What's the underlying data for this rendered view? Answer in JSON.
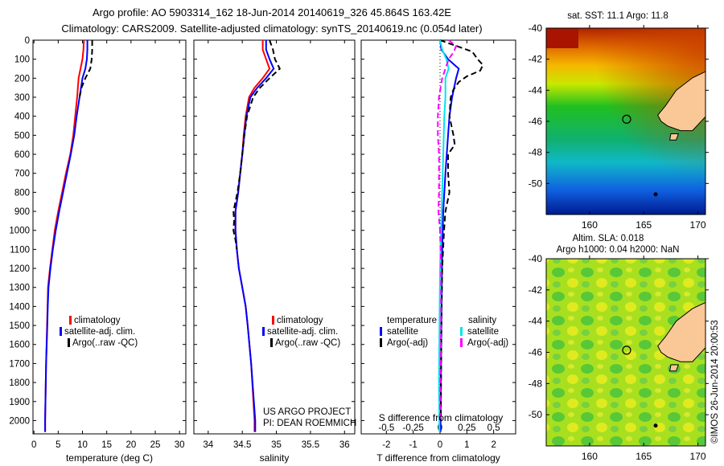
{
  "title": {
    "line1": "Argo profile: AO 5903314_162 18-Jun-2014 20140619_326 45.864S 163.42E",
    "line2": "Climatology: CARS2009. Satellite-adjusted climatology: synTS_20140619.nc (0.054d later)"
  },
  "colors": {
    "climatology": "#ff0000",
    "satellite": "#0000ff",
    "argo": "#000000",
    "s_satellite": "#00e5ee",
    "s_argo": "#ff00ff"
  },
  "credit": "©IMOS 26-Jun-2014 20:00:53",
  "project": {
    "line1": "US ARGO PROJECT",
    "line2": "PI: DEAN ROEMMICH"
  },
  "chart_data": [
    {
      "type": "line",
      "id": "temperature",
      "xlabel": "temperature (deg C)",
      "ylabel": "depth",
      "xlim": [
        -0.2,
        31.3
      ],
      "ylim": [
        2070,
        0
      ],
      "xticks": [
        0,
        5,
        10,
        15,
        20,
        25,
        30
      ],
      "yticks": [
        0,
        100,
        200,
        300,
        400,
        500,
        600,
        700,
        800,
        900,
        1000,
        1100,
        1200,
        1300,
        1400,
        1500,
        1600,
        1700,
        1800,
        1900,
        2000
      ],
      "legend": [
        "climatology",
        "satellite-adj. clim.",
        "Argo(..raw -QC)"
      ],
      "series": [
        {
          "name": "climatology",
          "color": "#ff0000",
          "dash": false,
          "depth": [
            0,
            50,
            100,
            150,
            200,
            300,
            400,
            500,
            600,
            700,
            800,
            900,
            1000,
            1100,
            1200,
            1300,
            1400,
            1500,
            1700,
            2000,
            2060
          ],
          "values": [
            10.3,
            10.2,
            10.0,
            9.6,
            9.2,
            8.9,
            8.5,
            8.1,
            7.5,
            6.6,
            5.8,
            5.0,
            4.3,
            3.8,
            3.3,
            2.9,
            2.8,
            2.7,
            2.5,
            2.3,
            2.3
          ]
        },
        {
          "name": "satellite-adj. clim.",
          "color": "#0000ff",
          "dash": false,
          "depth": [
            0,
            50,
            100,
            150,
            200,
            300,
            400,
            500,
            600,
            700,
            800,
            900,
            1000,
            1100,
            1200,
            1300,
            1400,
            1500,
            1700,
            2000,
            2060
          ],
          "values": [
            11.0,
            11.0,
            10.9,
            10.6,
            10.0,
            9.4,
            8.8,
            8.3,
            7.6,
            6.8,
            6.0,
            5.2,
            4.5,
            3.9,
            3.4,
            3.0,
            2.85,
            2.75,
            2.5,
            2.3,
            2.3
          ]
        },
        {
          "name": "Argo(..raw -QC)",
          "color": "#000000",
          "dash": true,
          "depth": [
            0,
            50,
            100,
            150,
            200,
            250,
            300
          ],
          "values": [
            12.0,
            12.0,
            11.9,
            11.6,
            10.6,
            9.8,
            9.4
          ]
        }
      ]
    },
    {
      "type": "line",
      "id": "salinity",
      "xlabel": "salinity",
      "ylabel": "depth",
      "xlim": [
        33.79,
        36.15
      ],
      "ylim": [
        2070,
        0
      ],
      "xticks": [
        34,
        34.5,
        35,
        35.5,
        36
      ],
      "legend": [
        "climatology",
        "satellite-adj. clim.",
        "Argo(..raw -QC)"
      ],
      "series": [
        {
          "name": "climatology",
          "color": "#ff0000",
          "dash": false,
          "depth": [
            0,
            50,
            100,
            150,
            200,
            250,
            300,
            400,
            500,
            600,
            700,
            800,
            900,
            1000,
            1100,
            1200,
            1300,
            1400,
            1500,
            1700,
            2000,
            2060
          ],
          "values": [
            34.8,
            34.8,
            34.85,
            34.9,
            34.8,
            34.68,
            34.6,
            34.55,
            34.52,
            34.5,
            34.47,
            34.44,
            34.4,
            34.4,
            34.42,
            34.45,
            34.5,
            34.55,
            34.58,
            34.63,
            34.68,
            34.68
          ]
        },
        {
          "name": "satellite-adj. clim.",
          "color": "#0000ff",
          "dash": false,
          "depth": [
            0,
            50,
            100,
            150,
            200,
            250,
            300,
            400,
            500,
            600,
            700,
            800,
            900,
            1000,
            1100,
            1200,
            1300,
            1400,
            1500,
            1700,
            2000,
            2060
          ],
          "values": [
            34.85,
            34.85,
            34.9,
            34.96,
            34.85,
            34.72,
            34.62,
            34.56,
            34.53,
            34.5,
            34.47,
            34.44,
            34.4,
            34.4,
            34.42,
            34.45,
            34.5,
            34.55,
            34.58,
            34.63,
            34.69,
            34.69
          ]
        },
        {
          "name": "Argo(..raw -QC)",
          "color": "#000000",
          "dash": true,
          "depth": [
            0,
            50,
            100,
            150,
            200,
            250,
            300,
            400,
            500,
            600,
            700,
            800,
            850,
            900,
            950,
            1000,
            1050,
            1100
          ],
          "values": [
            34.9,
            34.95,
            34.98,
            35.05,
            34.9,
            34.76,
            34.66,
            34.57,
            34.53,
            34.5,
            34.47,
            34.43,
            34.4,
            34.37,
            34.38,
            34.37,
            34.4,
            34.42
          ]
        }
      ]
    },
    {
      "type": "line",
      "id": "difference",
      "xlabel": "T difference from climatology",
      "x2label": "S difference from climatology",
      "xlim": [
        -2.94,
        2.82
      ],
      "ylim": [
        2070,
        0
      ],
      "xticks": [
        -2,
        -1,
        0,
        1,
        2
      ],
      "x2lim": [
        -0.735,
        0.705
      ],
      "x2ticks": [
        -0.5,
        -0.25,
        0,
        0.25,
        0.5
      ],
      "legend": {
        "temperature_header": "temperature",
        "salinity_header": "salinity",
        "t_satellite": "satellite",
        "t_argo": "Argo(-adj)",
        "s_satellite": "satellite",
        "s_argo": "Argo(-adj)"
      },
      "series": [
        {
          "name": "T satellite",
          "color": "#0000ff",
          "dash": false,
          "axis": "T",
          "depth": [
            0,
            50,
            100,
            150,
            200,
            300,
            400,
            500,
            700,
            900,
            1100,
            1500,
            2000,
            2060
          ],
          "values": [
            0,
            0.05,
            0.3,
            0.7,
            0.6,
            0.45,
            0.35,
            0.3,
            0.2,
            0.12,
            0.08,
            0.05,
            0.02,
            0.02
          ]
        },
        {
          "name": "T Argo(-adj)",
          "color": "#000000",
          "dash": true,
          "axis": "T",
          "depth": [
            0,
            30,
            60,
            100,
            130,
            160,
            190,
            220,
            260,
            300,
            400,
            500,
            550,
            600,
            700,
            800,
            900,
            1000,
            1200,
            1500,
            2000
          ],
          "values": [
            0,
            0.6,
            1.2,
            1.4,
            1.6,
            1.5,
            1.0,
            0.7,
            0.5,
            0.4,
            0.35,
            0.5,
            0.55,
            0.3,
            0.3,
            0.35,
            0.2,
            0.15,
            0.08,
            0.05,
            0.03
          ]
        },
        {
          "name": "S satellite",
          "color": "#00e5ee",
          "dash": false,
          "axis": "S",
          "depth": [
            0,
            50,
            100,
            150,
            200,
            300,
            400,
            600,
            800,
            1000,
            1200,
            1500,
            1800,
            2060
          ],
          "values": [
            0,
            0.02,
            0.06,
            0.08,
            0.05,
            0.05,
            0.04,
            0.03,
            0.02,
            0.01,
            0.0,
            -0.005,
            -0.01,
            -0.005
          ]
        },
        {
          "name": "S Argo(-adj)",
          "color": "#ff00ff",
          "dash": true,
          "axis": "S",
          "depth": [
            0,
            30,
            60,
            100,
            150,
            200,
            300,
            400,
            500,
            600,
            800,
            900,
            1000,
            1200,
            1500,
            2000
          ],
          "values": [
            0.08,
            0.15,
            0.13,
            0.08,
            0.05,
            0.02,
            -0.01,
            -0.02,
            -0.02,
            -0.01,
            -0.01,
            -0.015,
            0.0,
            0.01,
            0.01,
            0.0
          ]
        }
      ]
    },
    {
      "type": "heatmap",
      "id": "sst-map",
      "title": "sat. SST: 11.1 Argo: 11.8",
      "xlim": [
        156,
        170.7
      ],
      "ylim": [
        -52,
        -40
      ],
      "xticks": [
        160,
        165,
        170
      ],
      "yticks": [
        -40,
        -42,
        -44,
        -46,
        -48,
        -50
      ],
      "argo_position": [
        163.42,
        -45.864
      ]
    },
    {
      "type": "heatmap",
      "id": "sla-map",
      "title": "Altim. SLA: 0.018",
      "subtitle": "Argo h1000: 0.04 h2000: NaN",
      "xlim": [
        156,
        170.7
      ],
      "ylim": [
        -52,
        -40
      ],
      "xticks": [
        160,
        165,
        170
      ],
      "yticks": [
        -40,
        -42,
        -44,
        -46,
        -48,
        -50
      ],
      "argo_position": [
        163.42,
        -45.864
      ]
    }
  ]
}
